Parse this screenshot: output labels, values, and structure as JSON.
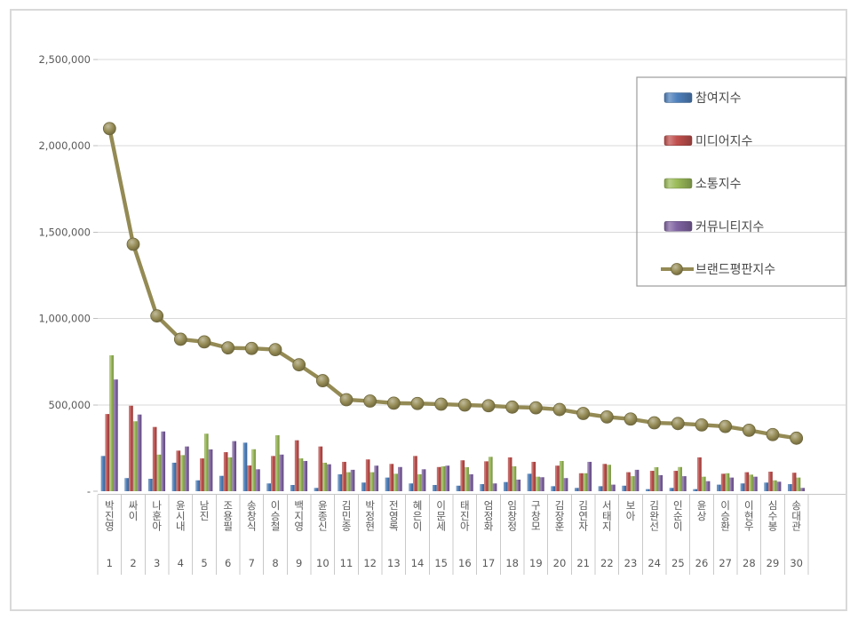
{
  "chart_data": {
    "type": "bar+line",
    "title": "",
    "xlabel": "",
    "ylabel": "",
    "ylim": [
      0,
      2500000
    ],
    "ytick_interval": 500000,
    "ytick_labels": [
      "-",
      "500,000",
      "1,000,000",
      "1,500,000",
      "2,000,000",
      "2,500,000"
    ],
    "grid": true,
    "legend_position": "top-right",
    "categories": [
      "박진영",
      "싸이",
      "나훈아",
      "윤시내",
      "남진",
      "조용필",
      "송창식",
      "이승철",
      "백지영",
      "윤종신",
      "김민종",
      "박정현",
      "전영록",
      "혜은이",
      "이문세",
      "태진아",
      "엄정화",
      "임창정",
      "구창모",
      "김장훈",
      "김연자",
      "서태지",
      "보아",
      "김완선",
      "인순이",
      "윤상",
      "이승환",
      "이현우",
      "심수봉",
      "송대관"
    ],
    "ranks": [
      "1",
      "2",
      "3",
      "4",
      "5",
      "6",
      "7",
      "8",
      "9",
      "10",
      "11",
      "12",
      "13",
      "14",
      "15",
      "16",
      "17",
      "18",
      "19",
      "20",
      "21",
      "22",
      "23",
      "24",
      "25",
      "26",
      "27",
      "28",
      "29",
      "30"
    ],
    "series": [
      {
        "name": "참여지수",
        "type": "bar",
        "color": "#4F81BD",
        "values": [
          204000,
          76000,
          72000,
          165000,
          63000,
          89000,
          281000,
          45000,
          36000,
          19000,
          98000,
          50000,
          79000,
          45000,
          36000,
          32000,
          41000,
          53000,
          101000,
          29000,
          19000,
          29000,
          32000,
          12000,
          19000,
          12000,
          38000,
          45000,
          50000,
          41000
        ]
      },
      {
        "name": "미디어지수",
        "type": "bar",
        "color": "#C0504D",
        "values": [
          447000,
          495000,
          372000,
          235000,
          190000,
          226000,
          149000,
          204000,
          295000,
          259000,
          170000,
          184000,
          158000,
          204000,
          140000,
          179000,
          173000,
          196000,
          170000,
          148000,
          104000,
          158000,
          110000,
          118000,
          118000,
          196000,
          101000,
          110000,
          113000,
          107000
        ]
      },
      {
        "name": "소통지수",
        "type": "bar",
        "color": "#9BBB59",
        "values": [
          787000,
          405000,
          212000,
          209000,
          333000,
          196000,
          243000,
          324000,
          190000,
          165000,
          110000,
          110000,
          101000,
          98000,
          144000,
          139000,
          199000,
          144000,
          84000,
          175000,
          104000,
          153000,
          87000,
          139000,
          140000,
          84000,
          104000,
          96000,
          63000,
          79000
        ]
      },
      {
        "name": "커뮤니티지수",
        "type": "bar",
        "color": "#8064A2",
        "values": [
          647000,
          444000,
          346000,
          259000,
          242000,
          290000,
          127000,
          212000,
          175000,
          156000,
          124000,
          148000,
          140000,
          127000,
          148000,
          98000,
          45000,
          67000,
          81000,
          76000,
          170000,
          38000,
          124000,
          93000,
          87000,
          58000,
          79000,
          84000,
          55000,
          19000
        ]
      },
      {
        "name": "브랜드평판지수",
        "type": "line",
        "color": "#948A54",
        "values": [
          2100000,
          1430000,
          1015000,
          880000,
          865000,
          830000,
          827000,
          820000,
          732000,
          640000,
          530000,
          522000,
          510000,
          508000,
          504000,
          499000,
          495000,
          487000,
          483000,
          473000,
          450000,
          430000,
          418000,
          396000,
          392000,
          384000,
          375000,
          353000,
          328000,
          307000
        ]
      }
    ],
    "colors": {
      "grid": "#d9d9d9",
      "axis_line": "#c6c6c6",
      "tick": "#bfbfbf",
      "separator": "#c9c9c9",
      "axis_text": "#595959",
      "legend_border": "#9b9b9b",
      "line_marker_edge": "#6e673c"
    }
  }
}
